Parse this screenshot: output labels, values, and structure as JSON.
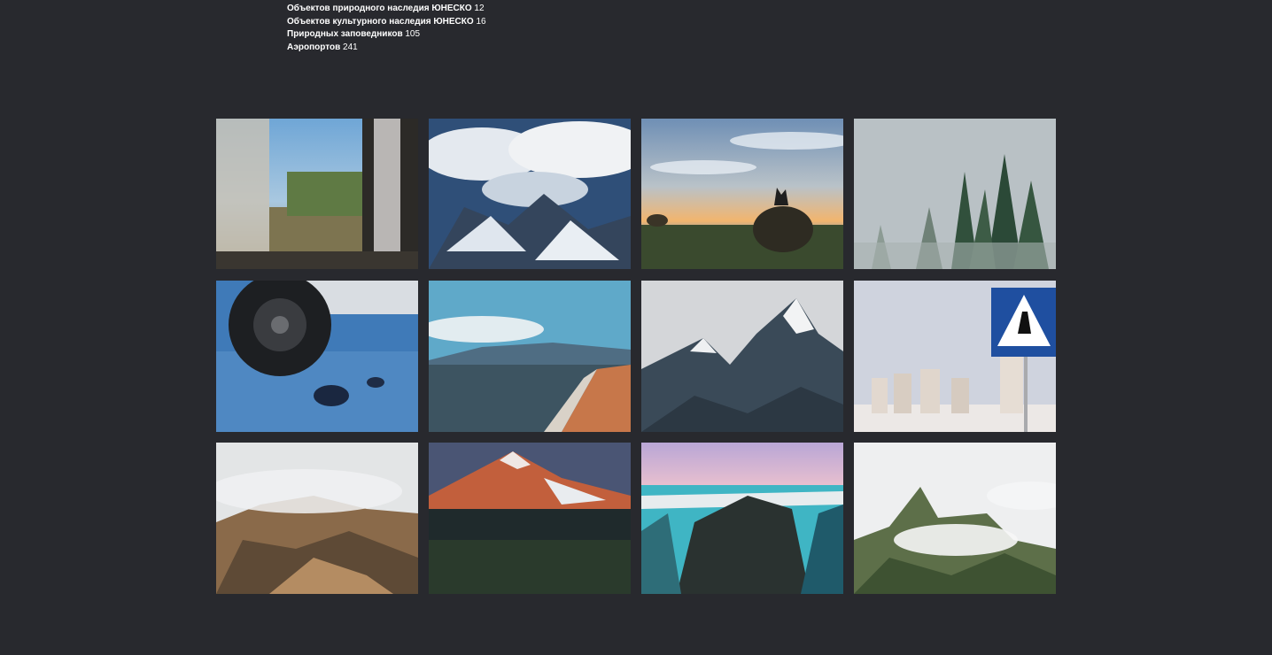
{
  "stats": [
    {
      "label": "Объектов природного наследия ЮНЕСКО",
      "value": "12"
    },
    {
      "label": "Объектов культурного наследия ЮНЕСКО",
      "value": "16"
    },
    {
      "label": "Природных заповедников",
      "value": "105"
    },
    {
      "label": "Аэропортов",
      "value": "241"
    }
  ],
  "gallery": {
    "photos": [
      "train-window-photo",
      "mountains-above-clouds-photo",
      "wolf-on-haystack-sunset-photo",
      "foggy-forest-photo",
      "car-wheel-on-ice-photo",
      "lake-shore-beach-photo",
      "snowy-mountain-peaks-photo",
      "pedestrian-crossing-sign-photo",
      "volcanic-hills-fog-photo",
      "volcano-snow-cap-photo",
      "canyon-turquoise-river-photo",
      "green-peaks-in-clouds-photo"
    ]
  }
}
